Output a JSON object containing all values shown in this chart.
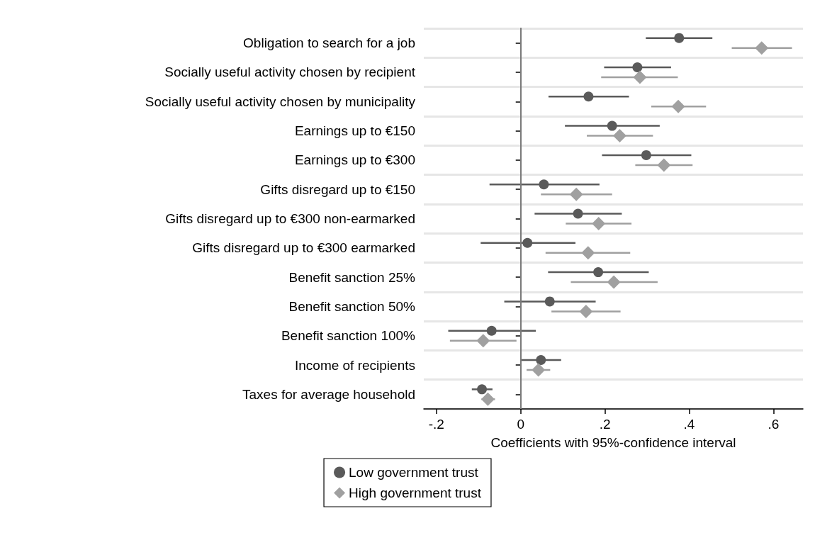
{
  "chart_data": {
    "type": "scatter",
    "orientation": "horizontal",
    "categories": [
      "Obligation to search for a job",
      "Socially useful activity chosen by recipient",
      "Socially useful activity chosen by municipality",
      "Earnings up to €150",
      "Earnings up to €300",
      "Gifts disregard up to €150",
      "Gifts disregard up to €300 non-earmarked",
      "Gifts disregard up to €300 earmarked",
      "Benefit sanction 25%",
      "Benefit sanction 50%",
      "Benefit sanction 100%",
      "Income of recipients",
      "Taxes for average household"
    ],
    "series": [
      {
        "name": "Low government trust",
        "color": "#5a5a5a",
        "marker": "circle",
        "values": [
          0.376,
          0.277,
          0.161,
          0.217,
          0.298,
          0.055,
          0.136,
          0.016,
          0.184,
          0.069,
          -0.069,
          0.048,
          -0.092
        ],
        "errors": [
          [
            0.297,
            0.455
          ],
          [
            0.198,
            0.357
          ],
          [
            0.066,
            0.257
          ],
          [
            0.105,
            0.33
          ],
          [
            0.193,
            0.405
          ],
          [
            -0.074,
            0.187
          ],
          [
            0.033,
            0.24
          ],
          [
            -0.095,
            0.13
          ],
          [
            0.065,
            0.304
          ],
          [
            -0.039,
            0.178
          ],
          [
            -0.172,
            0.036
          ],
          [
            -0.001,
            0.096
          ],
          [
            -0.116,
            -0.067
          ]
        ]
      },
      {
        "name": "High government trust",
        "color": "#a0a0a0",
        "marker": "diamond",
        "values": [
          0.572,
          0.283,
          0.374,
          0.235,
          0.34,
          0.132,
          0.185,
          0.16,
          0.221,
          0.155,
          -0.089,
          0.042,
          -0.078
        ],
        "errors": [
          [
            0.501,
            0.644
          ],
          [
            0.191,
            0.373
          ],
          [
            0.31,
            0.44
          ],
          [
            0.157,
            0.314
          ],
          [
            0.272,
            0.408
          ],
          [
            0.048,
            0.217
          ],
          [
            0.107,
            0.263
          ],
          [
            0.059,
            0.26
          ],
          [
            0.119,
            0.325
          ],
          [
            0.073,
            0.237
          ],
          [
            -0.168,
            -0.01
          ],
          [
            0.014,
            0.07
          ],
          [
            -0.093,
            -0.061
          ]
        ]
      }
    ],
    "xlim": [
      -0.23,
      0.67
    ],
    "xticks": [
      {
        "value": -0.2,
        "label": "-.2"
      },
      0,
      {
        "value": 0.2,
        "label": ".2"
      },
      {
        "value": 0.4,
        "label": ".4"
      },
      {
        "value": 0.6,
        "label": ".6"
      }
    ],
    "xlabel": "Coefficients with 95%-confidence interval",
    "ref_lines": [
      {
        "axis": "x",
        "value": 0,
        "color": "#7a7a7a"
      }
    ],
    "grid": "y",
    "legend": "bottom"
  }
}
